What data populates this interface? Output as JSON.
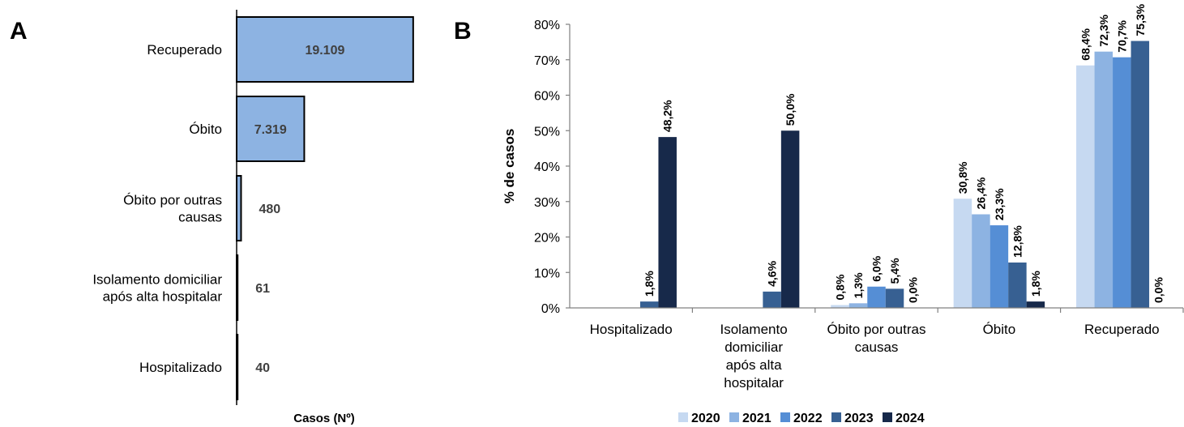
{
  "panels": {
    "a": "A",
    "b": "B"
  },
  "chart_data": [
    {
      "type": "bar",
      "orientation": "horizontal",
      "categories": [
        "Recuperado",
        "Óbito",
        "Óbito por outras causas",
        "Isolamento domiciliar após alta hospitalar",
        "Hospitalizado"
      ],
      "category_lines": [
        [
          "Recuperado"
        ],
        [
          "Óbito"
        ],
        [
          "Óbito por outras",
          "causas"
        ],
        [
          "Isolamento domiciliar",
          "após alta hospitalar"
        ],
        [
          "Hospitalizado"
        ]
      ],
      "values": [
        19109,
        7319,
        480,
        61,
        40
      ],
      "data_labels": [
        "19.109",
        "7.319",
        "480",
        "61",
        "40"
      ],
      "xlabel": "Casos (Nº)",
      "title": "",
      "xlim": [
        0,
        20000
      ],
      "grid": false,
      "colors": {
        "bar": "#8db3e2",
        "outline": "#000000",
        "label": "#404040"
      }
    },
    {
      "type": "bar",
      "categories": [
        "Hospitalizado",
        "Isolamento domiciliar após alta hospitalar",
        "Óbito por outras causas",
        "Óbito",
        "Recuperado"
      ],
      "category_lines": [
        [
          "Hospitalizado"
        ],
        [
          "Isolamento",
          "domiciliar",
          "após alta",
          "hospitalar"
        ],
        [
          "Óbito por outras",
          "causas"
        ],
        [
          "Óbito"
        ],
        [
          "Recuperado"
        ]
      ],
      "series": [
        {
          "name": "2020",
          "color": "#c6d9f1",
          "values": [
            null,
            null,
            0.8,
            30.8,
            68.4
          ],
          "labels": [
            "",
            "",
            "0,8%",
            "30,8%",
            "68,4%"
          ]
        },
        {
          "name": "2021",
          "color": "#8db3e2",
          "values": [
            null,
            null,
            1.3,
            26.4,
            72.3
          ],
          "labels": [
            "",
            "",
            "1,3%",
            "26,4%",
            "72,3%"
          ]
        },
        {
          "name": "2022",
          "color": "#558ed5",
          "values": [
            null,
            null,
            6.0,
            23.3,
            70.7
          ],
          "labels": [
            "",
            "",
            "6,0%",
            "23,3%",
            "70,7%"
          ]
        },
        {
          "name": "2023",
          "color": "#376092",
          "values": [
            1.8,
            4.6,
            5.4,
            12.8,
            75.3
          ],
          "labels": [
            "1,8%",
            "4,6%",
            "5,4%",
            "12,8%",
            "75,3%"
          ]
        },
        {
          "name": "2024",
          "color": "#17294a",
          "values": [
            48.2,
            50.0,
            0.0,
            1.8,
            0.0
          ],
          "labels": [
            "48,2%",
            "50,0%",
            "0,0%",
            "1,8%",
            "0,0%"
          ]
        }
      ],
      "ylabel": "% de casos",
      "title": "",
      "ylim": [
        0,
        80
      ],
      "yticks": [
        "0%",
        "10%",
        "20%",
        "30%",
        "40%",
        "50%",
        "60%",
        "70%",
        "80%"
      ],
      "legend": "bottom",
      "grid": false
    }
  ]
}
